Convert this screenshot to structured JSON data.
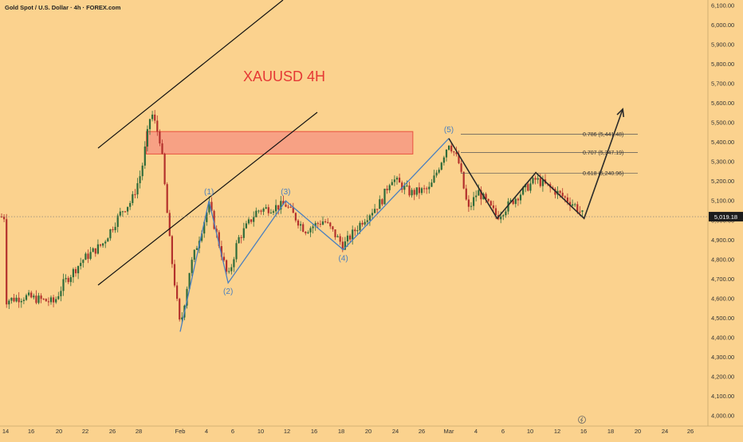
{
  "header": {
    "symbol_line": "Gold Spot / U.S. Dollar · 4h · FOREX.com"
  },
  "title": "XAUUSD 4H",
  "current_price_label": "5,019.18",
  "colors": {
    "background": "#fbd28e",
    "candle_up": "#2f6b3a",
    "candle_down": "#b3312c",
    "wave_line": "#4a7fbf",
    "channel_line": "#111111",
    "zone": "#f59080",
    "title": "#e53935",
    "arrow": "#2a2a2a"
  },
  "axis": {
    "y_ticks": [
      "6,100.00",
      "6,000.00",
      "5,900.00",
      "5,800.00",
      "5,700.00",
      "5,600.00",
      "5,500.00",
      "5,400.00",
      "5,300.00",
      "5,200.00",
      "5,100.00",
      "5,000.00",
      "4,900.00",
      "4,800.00",
      "4,700.00",
      "4,600.00",
      "4,500.00",
      "4,400.00",
      "4,300.00",
      "4,200.00",
      "4,100.00",
      "4,000.00"
    ],
    "x_ticks": [
      "14",
      "16",
      "20",
      "22",
      "26",
      "28",
      "Feb",
      "4",
      "6",
      "10",
      "12",
      "16",
      "18",
      "20",
      "24",
      "26",
      "Mar",
      "4",
      "6",
      "10",
      "12",
      "16",
      "18",
      "20",
      "24",
      "26"
    ],
    "ylim": [
      3970,
      6120
    ]
  },
  "chart_data": {
    "type": "line",
    "title": "XAUUSD 4H",
    "ylim": [
      3970,
      6120
    ],
    "wave_labels": [
      "(1)",
      "(2)",
      "(3)",
      "(4)",
      "(5)"
    ],
    "elliott_wave": [
      {
        "x": "Feb 1",
        "y": 4430
      },
      {
        "x": "Feb 4",
        "y": 5100
      },
      {
        "x": "Feb 6",
        "y": 4680
      },
      {
        "x": "Feb 12",
        "y": 5100
      },
      {
        "x": "Feb 18",
        "y": 4850
      },
      {
        "x": "Mar 1",
        "y": 5420
      }
    ],
    "fib_levels": [
      {
        "label": "0.786 (5,441.48)",
        "value": 5441.48
      },
      {
        "label": "0.707 (5,347.19)",
        "value": 5347.19
      },
      {
        "label": "0.618 (5,240.96)",
        "value": 5240.96
      }
    ],
    "supply_zone": {
      "low": 5340,
      "high": 5455,
      "from": "Jan 29",
      "to": "Feb 25"
    },
    "projection": [
      {
        "x": "Mar 1",
        "y": 5420
      },
      {
        "x": "Mar 6",
        "y": 5010
      },
      {
        "x": "Mar 10",
        "y": 5245
      },
      {
        "x": "Mar 15",
        "y": 5010
      },
      {
        "x": "Mar 19",
        "y": 5570
      }
    ],
    "last_price": 5019.18,
    "price_path": [
      {
        "x": "Jan 14",
        "y": 4590
      },
      {
        "x": "Jan 16",
        "y": 4610
      },
      {
        "x": "Jan 19",
        "y": 4580
      },
      {
        "x": "Jan 20",
        "y": 4680
      },
      {
        "x": "Jan 22",
        "y": 4800
      },
      {
        "x": "Jan 24",
        "y": 4880
      },
      {
        "x": "Jan 26",
        "y": 5050
      },
      {
        "x": "Jan 27",
        "y": 5100
      },
      {
        "x": "Jan 28",
        "y": 5250
      },
      {
        "x": "Jan 29",
        "y": 5560
      },
      {
        "x": "Jan 30",
        "y": 5400
      },
      {
        "x": "Jan 31",
        "y": 4850
      },
      {
        "x": "Feb 1",
        "y": 4450
      },
      {
        "x": "Feb 2",
        "y": 4750
      },
      {
        "x": "Feb 4",
        "y": 5080
      },
      {
        "x": "Feb 6",
        "y": 4700
      },
      {
        "x": "Feb 7",
        "y": 4900
      },
      {
        "x": "Feb 9",
        "y": 5050
      },
      {
        "x": "Feb 12",
        "y": 5080
      },
      {
        "x": "Feb 14",
        "y": 4950
      },
      {
        "x": "Feb 16",
        "y": 5000
      },
      {
        "x": "Feb 18",
        "y": 4870
      },
      {
        "x": "Feb 20",
        "y": 5000
      },
      {
        "x": "Feb 22",
        "y": 5100
      },
      {
        "x": "Feb 23",
        "y": 5220
      },
      {
        "x": "Feb 25",
        "y": 5140
      },
      {
        "x": "Feb 27",
        "y": 5160
      },
      {
        "x": "Mar 1",
        "y": 5400
      },
      {
        "x": "Mar 2",
        "y": 5300
      },
      {
        "x": "Mar 3",
        "y": 5050
      },
      {
        "x": "Mar 4",
        "y": 5150
      },
      {
        "x": "Mar 6",
        "y": 5020
      },
      {
        "x": "Mar 8",
        "y": 5120
      },
      {
        "x": "Mar 10",
        "y": 5210
      },
      {
        "x": "Mar 12",
        "y": 5150
      },
      {
        "x": "Mar 14",
        "y": 5080
      },
      {
        "x": "Mar 15",
        "y": 5019
      }
    ]
  }
}
